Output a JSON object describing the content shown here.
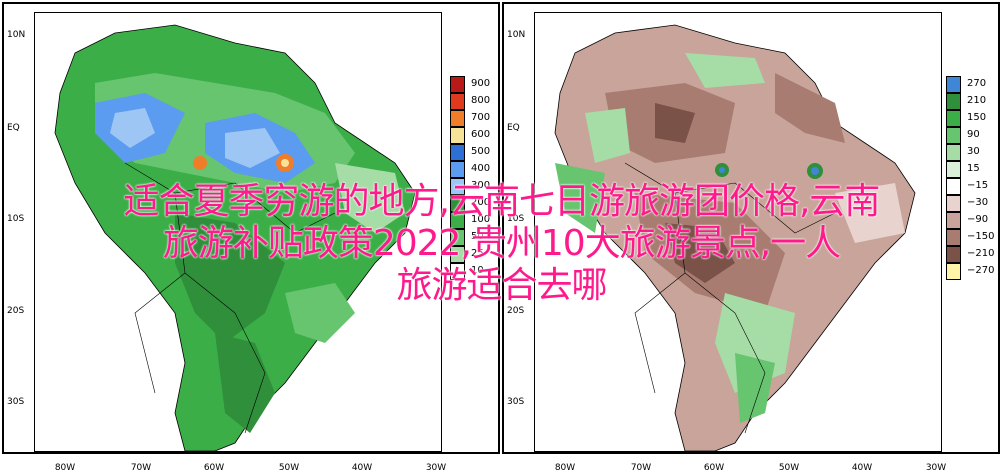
{
  "left_panel": {
    "lat_labels": [
      "10N",
      "EQ",
      "10S",
      "20S",
      "30S"
    ],
    "lon_labels": [
      "80W",
      "70W",
      "60W",
      "50W",
      "40W",
      "30W"
    ],
    "legend": [
      {
        "label": "900",
        "color": "#b81a1a"
      },
      {
        "label": "800",
        "color": "#e03a1e"
      },
      {
        "label": "700",
        "color": "#f07d2a"
      },
      {
        "label": "600",
        "color": "#f7e29a"
      },
      {
        "label": "500",
        "color": "#2e6fd6"
      },
      {
        "label": "400",
        "color": "#5b9bf0"
      },
      {
        "label": "300",
        "color": "#9ec6f5"
      },
      {
        "label": "200",
        "color": "#2f8f3a"
      },
      {
        "label": "100",
        "color": "#3cae48"
      },
      {
        "label": "50",
        "color": "#67c46f"
      },
      {
        "label": "25",
        "color": "#a6dca6"
      },
      {
        "label": "10",
        "color": "#ffffff"
      }
    ]
  },
  "right_panel": {
    "lat_labels": [
      "10N",
      "EQ",
      "10S",
      "20S",
      "30S"
    ],
    "lon_labels": [
      "80W",
      "70W",
      "60W",
      "50W",
      "40W",
      "30W"
    ],
    "legend": [
      {
        "label": "270",
        "color": "#3f86d6"
      },
      {
        "label": "210",
        "color": "#2f8f3a"
      },
      {
        "label": "150",
        "color": "#3cae48"
      },
      {
        "label": "90",
        "color": "#67c46f"
      },
      {
        "label": "30",
        "color": "#a6dca6"
      },
      {
        "label": "15",
        "color": "#d9f0d9"
      },
      {
        "label": "−15",
        "color": "#ffffff"
      },
      {
        "label": "−30",
        "color": "#e9d3ce"
      },
      {
        "label": "−90",
        "color": "#c9a49a"
      },
      {
        "label": "−150",
        "color": "#a87c70"
      },
      {
        "label": "−210",
        "color": "#7a5248"
      },
      {
        "label": "−270",
        "color": "#fff4a8"
      }
    ]
  },
  "overlay": {
    "line1": "适合夏季穷游的地方,云南七日游旅游团价格,云南",
    "line2": "旅游补贴政策2022,贵州10大旅游景点,一人",
    "line3": "旅游适合去哪"
  }
}
